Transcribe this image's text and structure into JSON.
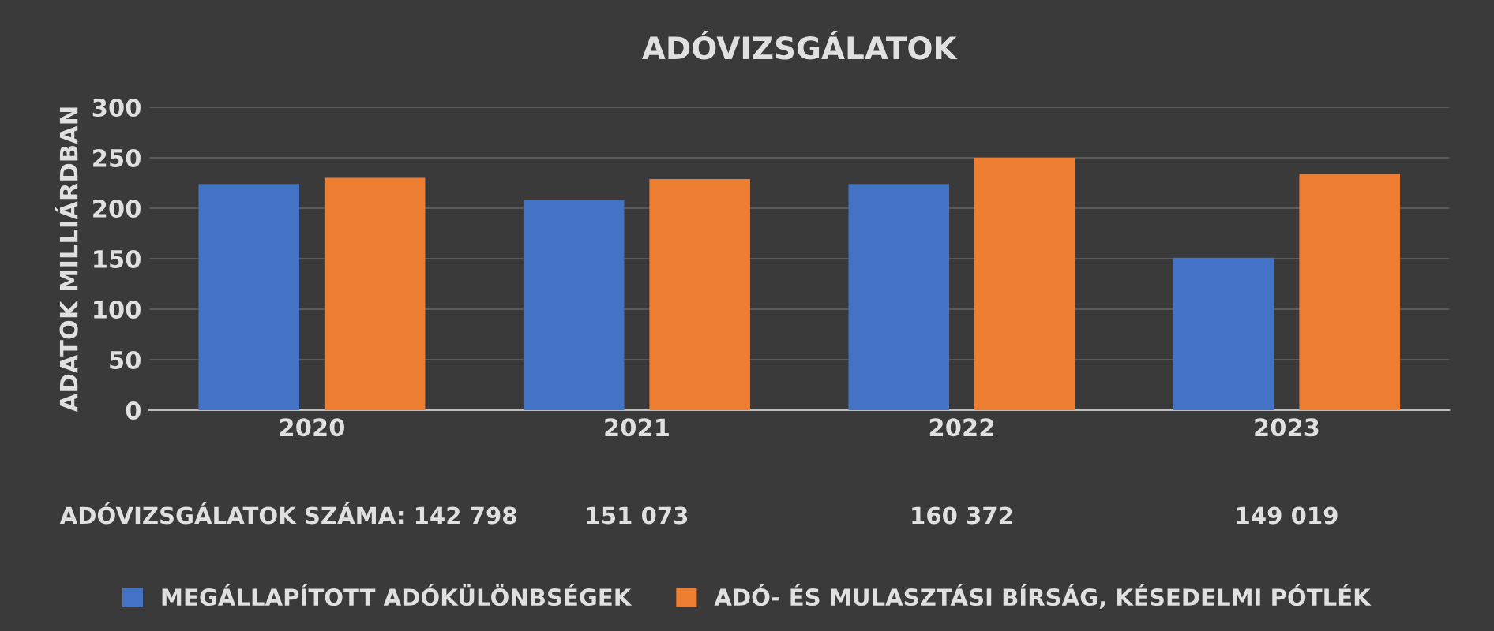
{
  "chart_data": {
    "type": "bar",
    "title": "ADÓVIZSGÁLATOK",
    "ylabel": "ADATOK MILLIÁRDBAN",
    "categories": [
      "2020",
      "2021",
      "2022",
      "2023"
    ],
    "series": [
      {
        "name": "MEGÁLLAPÍTOTT ADÓKÜLÖNBSÉGEK",
        "color": "#4472c4",
        "values": [
          224,
          208,
          224,
          151
        ]
      },
      {
        "name": "ADÓ- ÉS MULASZTÁSI BÍRSÁG, KÉSEDELMI PÓTLÉK",
        "color": "#ed7d31",
        "values": [
          230,
          229,
          250,
          234
        ]
      }
    ],
    "ylim": [
      0,
      300
    ],
    "yticks": [
      0,
      50,
      100,
      150,
      200,
      250,
      300
    ],
    "grid": "y",
    "legend": "bottom",
    "annotations": [
      "ADÓVIZSGÁLATOK SZÁMA: 142 798",
      "151 073",
      "160 372",
      "149 019"
    ]
  }
}
